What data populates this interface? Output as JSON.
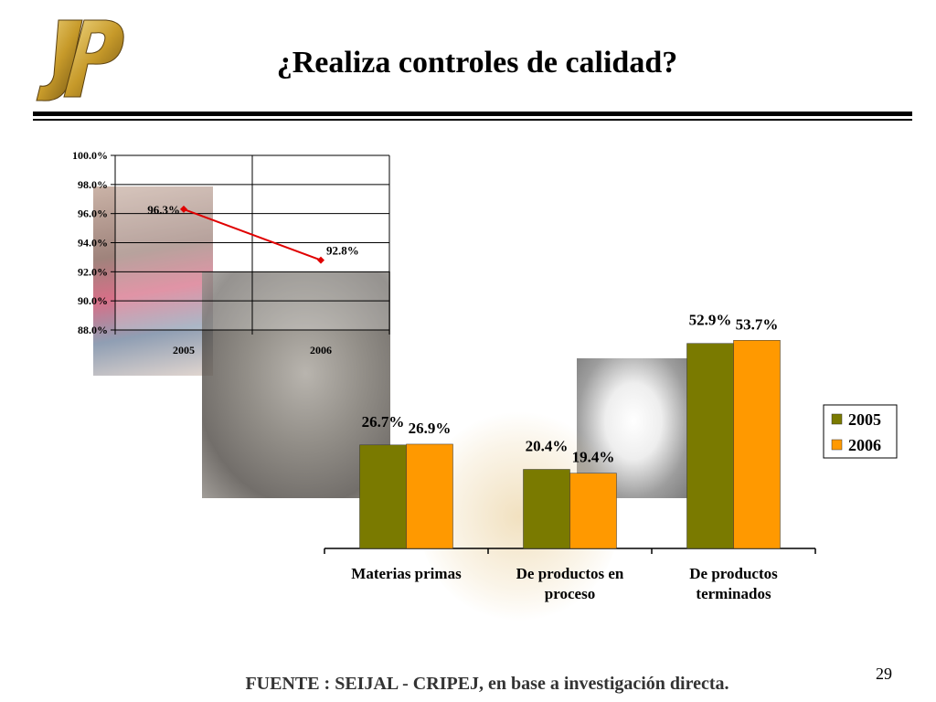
{
  "slide": {
    "title": "¿Realiza controles de calidad?",
    "footer": "FUENTE : SEIJAL - CRIPEJ,  en base a investigación directa.",
    "page_number": "29"
  },
  "colors": {
    "line_series": "#e00000",
    "series_2005": "#7a7a00",
    "series_2006": "#ff9900",
    "gold": "#c79a2a"
  },
  "icons": {
    "logo": "jp-logo-icon"
  },
  "chart_data": [
    {
      "type": "line",
      "x": [
        "2005",
        "2006"
      ],
      "series": [
        {
          "values": [
            96.3,
            92.8
          ],
          "labels": [
            "96.3%",
            "92.8%"
          ]
        }
      ],
      "yticks": [
        "88.0%",
        "90.0%",
        "92.0%",
        "94.0%",
        "96.0%",
        "98.0%",
        "100.0%"
      ],
      "ylim": [
        88,
        100
      ],
      "grid": true
    },
    {
      "type": "bar",
      "categories": [
        [
          "Materias primas"
        ],
        [
          "De productos en",
          "proceso"
        ],
        [
          "De productos",
          "terminados"
        ]
      ],
      "series": [
        {
          "name": "2005",
          "values": [
            26.7,
            20.4,
            52.9
          ],
          "labels": [
            "26.7%",
            "20.4%",
            "52.9%"
          ]
        },
        {
          "name": "2006",
          "values": [
            26.9,
            19.4,
            53.7
          ],
          "labels": [
            "26.9%",
            "19.4%",
            "53.7%"
          ]
        }
      ],
      "legend": "right"
    }
  ]
}
